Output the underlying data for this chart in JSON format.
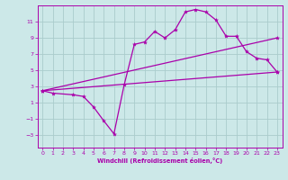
{
  "background_color": "#cce8e8",
  "grid_color": "#aacccc",
  "line_color": "#aa00aa",
  "xlabel": "Windchill (Refroidissement éolien,°C)",
  "xlim": [
    -0.5,
    23.5
  ],
  "ylim": [
    -4.5,
    13.0
  ],
  "yticks": [
    -3,
    -1,
    1,
    3,
    5,
    7,
    9,
    11
  ],
  "xticks": [
    0,
    1,
    2,
    3,
    4,
    5,
    6,
    7,
    8,
    9,
    10,
    11,
    12,
    13,
    14,
    15,
    16,
    17,
    18,
    19,
    20,
    21,
    22,
    23
  ],
  "series": [
    {
      "x": [
        0,
        1,
        3,
        4,
        5,
        6,
        7,
        8,
        9,
        10,
        11,
        12,
        13,
        14,
        15,
        16,
        17,
        18,
        19,
        20,
        21,
        22,
        23
      ],
      "y": [
        2.5,
        2.2,
        2.0,
        1.8,
        0.5,
        -1.2,
        -2.8,
        3.2,
        8.2,
        8.5,
        9.8,
        9.0,
        10.0,
        12.2,
        12.5,
        12.2,
        11.2,
        9.2,
        9.2,
        7.3,
        6.5,
        6.3,
        4.8
      ]
    },
    {
      "x": [
        0,
        23
      ],
      "y": [
        2.5,
        9.0
      ]
    },
    {
      "x": [
        0,
        23
      ],
      "y": [
        2.5,
        4.8
      ]
    }
  ]
}
